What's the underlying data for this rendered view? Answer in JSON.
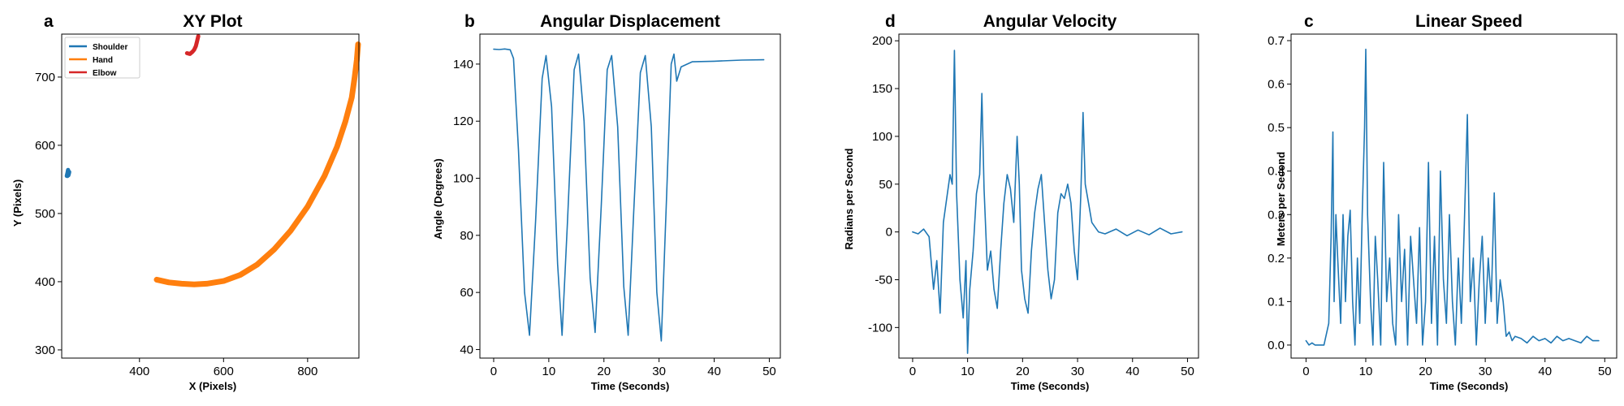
{
  "chart_data": [
    {
      "panel": "a",
      "type": "line",
      "title": "XY Plot",
      "xlabel": "X (Pixels)",
      "ylabel": "Y (Pixels)",
      "xlim": [
        215,
        922
      ],
      "ylim": [
        288,
        763
      ],
      "xticks": [
        400,
        600,
        800
      ],
      "yticks": [
        300,
        400,
        500,
        600,
        700
      ],
      "legend_position": "top-left",
      "series": [
        {
          "name": "Shoulder",
          "color": "#1f77b4",
          "x": [
            227,
            229,
            230,
            232,
            231,
            233,
            232,
            230,
            229,
            228
          ],
          "y": [
            555,
            560,
            564,
            559,
            556,
            561,
            558,
            557,
            555,
            556
          ]
        },
        {
          "name": "Hand",
          "color": "#ff7f0e",
          "x": [
            441,
            470,
            500,
            530,
            560,
            600,
            640,
            680,
            720,
            760,
            800,
            840,
            870,
            890,
            905,
            912,
            917,
            920
          ],
          "y": [
            403,
            399,
            397,
            396,
            397,
            401,
            410,
            425,
            447,
            475,
            510,
            555,
            598,
            635,
            670,
            700,
            725,
            748
          ]
        },
        {
          "name": "Elbow",
          "color": "#d62728",
          "x": [
            513,
            520,
            526,
            530,
            534,
            536,
            538,
            540
          ],
          "y": [
            735,
            734,
            737,
            740,
            745,
            750,
            755,
            760
          ]
        }
      ]
    },
    {
      "panel": "b",
      "type": "line",
      "title": "Angular Displacement",
      "xlabel": "Time (Seconds)",
      "ylabel": "Angle (Degrees)",
      "xlim": [
        -2.5,
        52
      ],
      "ylim": [
        37,
        150.5
      ],
      "xticks": [
        0,
        10,
        20,
        30,
        40,
        50
      ],
      "yticks": [
        40,
        60,
        80,
        100,
        120,
        140
      ],
      "series": [
        {
          "name": "",
          "color": "#1f77b4",
          "x": [
            0,
            1,
            2,
            3,
            3.6,
            4.5,
            5.6,
            6.5,
            7.6,
            8.8,
            9.5,
            10.5,
            11.6,
            12.4,
            13.4,
            14.6,
            15.4,
            16.4,
            17.5,
            18.4,
            19.5,
            20.6,
            21.4,
            22.5,
            23.6,
            24.4,
            25.4,
            26.6,
            27.5,
            28.6,
            29.6,
            30.4,
            31.4,
            32.2,
            32.7,
            33.2,
            34,
            36,
            40,
            45,
            49
          ],
          "y": [
            145.2,
            145.1,
            145.3,
            145,
            142,
            110,
            60,
            45,
            85,
            135,
            143,
            125,
            70,
            45,
            85,
            138,
            143.5,
            120,
            65,
            46,
            90,
            138,
            143,
            118,
            62,
            45,
            88,
            137,
            143,
            118,
            60,
            43,
            95,
            140,
            143.5,
            134,
            139,
            140.8,
            141,
            141.4,
            141.5
          ]
        }
      ]
    },
    {
      "panel": "d",
      "type": "line",
      "title": "Angular Velocity",
      "xlabel": "Time (Seconds)",
      "ylabel": "Radians per Second",
      "xlim": [
        -2.5,
        52
      ],
      "ylim": [
        -132,
        207
      ],
      "xticks": [
        0,
        10,
        20,
        30,
        40,
        50
      ],
      "yticks": [
        -100,
        -50,
        0,
        50,
        100,
        150,
        200
      ],
      "series": [
        {
          "name": "",
          "color": "#1f77b4",
          "x": [
            0,
            1,
            2,
            3,
            3.8,
            4.4,
            5,
            5.6,
            6.2,
            6.8,
            7.2,
            7.6,
            8,
            8.6,
            9.2,
            9.7,
            10,
            10.4,
            11,
            11.6,
            12.2,
            12.6,
            13,
            13.6,
            14.2,
            14.8,
            15.4,
            16,
            16.6,
            17.2,
            17.8,
            18.4,
            19,
            19.4,
            19.8,
            20.4,
            21,
            21.6,
            22.2,
            22.8,
            23.4,
            24,
            24.6,
            25.2,
            25.8,
            26.4,
            27,
            27.6,
            28.2,
            28.8,
            29.4,
            30,
            30.6,
            31,
            31.4,
            32,
            32.6,
            33.2,
            33.8,
            35,
            37,
            39,
            41,
            43,
            45,
            47,
            49
          ],
          "y": [
            0,
            -2,
            3,
            -5,
            -60,
            -30,
            -85,
            10,
            35,
            60,
            50,
            190,
            40,
            -50,
            -90,
            -30,
            -127,
            -60,
            -20,
            40,
            60,
            145,
            45,
            -40,
            -20,
            -60,
            -80,
            -20,
            30,
            60,
            45,
            10,
            100,
            50,
            -40,
            -70,
            -85,
            -20,
            20,
            45,
            60,
            10,
            -40,
            -70,
            -50,
            20,
            40,
            35,
            50,
            30,
            -20,
            -50,
            40,
            125,
            50,
            30,
            10,
            5,
            0,
            -2,
            3,
            -4,
            2,
            -3,
            4,
            -2,
            0
          ]
        }
      ]
    },
    {
      "panel": "c",
      "type": "line",
      "title": "Linear Speed",
      "xlabel": "Time (Seconds)",
      "ylabel": "Meters per Second",
      "xlim": [
        -2.5,
        52
      ],
      "ylim": [
        -0.03,
        0.715
      ],
      "xticks": [
        0,
        10,
        20,
        30,
        40,
        50
      ],
      "yticks": [
        0.0,
        0.1,
        0.2,
        0.3,
        0.4,
        0.5,
        0.6,
        0.7
      ],
      "series": [
        {
          "name": "",
          "color": "#1f77b4",
          "x": [
            0,
            0.5,
            1,
            1.5,
            2,
            3,
            3.8,
            4.2,
            4.5,
            4.7,
            5,
            5.3,
            5.8,
            6.2,
            6.6,
            7,
            7.4,
            7.8,
            8.2,
            8.6,
            9,
            9.4,
            9.8,
            10,
            10.3,
            10.8,
            11.2,
            11.6,
            12,
            12.5,
            13,
            13.5,
            14,
            14.5,
            15,
            15.5,
            16,
            16.5,
            17,
            17.5,
            18,
            18.5,
            19,
            19.5,
            20,
            20.5,
            21,
            21.5,
            22,
            22.5,
            23,
            23.5,
            24,
            24.5,
            25,
            25.5,
            26,
            26.5,
            27,
            27.5,
            28,
            28.5,
            29,
            29.5,
            30,
            30.5,
            31,
            31.5,
            32,
            32.5,
            33,
            33.5,
            34,
            34.5,
            35,
            36,
            37,
            38,
            39,
            40,
            41,
            42,
            43,
            44,
            45,
            46,
            47,
            48,
            49
          ],
          "y": [
            0.01,
            0,
            0.005,
            0,
            0,
            0,
            0.05,
            0.25,
            0.49,
            0.1,
            0.3,
            0.2,
            0.05,
            0.3,
            0.1,
            0.25,
            0.31,
            0.1,
            0,
            0.2,
            0.05,
            0.3,
            0.5,
            0.68,
            0.3,
            0.1,
            0,
            0.25,
            0.15,
            0,
            0.42,
            0.1,
            0.2,
            0.05,
            0,
            0.3,
            0.1,
            0.22,
            0,
            0.25,
            0.15,
            0.05,
            0.27,
            0,
            0.1,
            0.42,
            0.05,
            0.25,
            0,
            0.4,
            0.15,
            0.05,
            0.3,
            0.1,
            0,
            0.2,
            0.05,
            0.28,
            0.53,
            0.1,
            0.2,
            0,
            0.15,
            0.25,
            0.05,
            0.2,
            0.1,
            0.35,
            0.05,
            0.15,
            0.1,
            0.02,
            0.03,
            0.01,
            0.02,
            0.015,
            0.005,
            0.02,
            0.01,
            0.015,
            0.005,
            0.02,
            0.01,
            0.015,
            0.01,
            0.005,
            0.02,
            0.01,
            0.01
          ]
        }
      ]
    }
  ]
}
